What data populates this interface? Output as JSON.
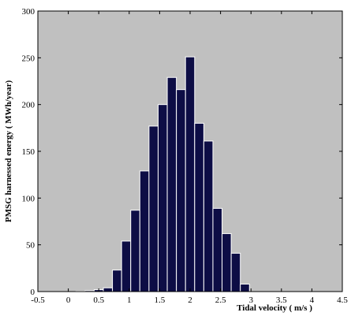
{
  "chart_data": {
    "type": "bar",
    "title": "",
    "xlabel": "Tidal velocity ( m/s )",
    "ylabel": "PMSG harnessed energy ( MWh/year)",
    "xlim": [
      -0.5,
      4.5
    ],
    "ylim": [
      0,
      300
    ],
    "xticks": [
      "-0.5",
      "0",
      "0.5",
      "1",
      "1.5",
      "2",
      "2.5",
      "3",
      "3.5",
      "4",
      "4.5"
    ],
    "yticks": [
      "0",
      "50",
      "100",
      "150",
      "200",
      "250",
      "300"
    ],
    "x": [
      0.05,
      0.2,
      0.35,
      0.5,
      0.65,
      0.8,
      0.95,
      1.1,
      1.25,
      1.4,
      1.55,
      1.7,
      1.85,
      2.0,
      2.15,
      2.3,
      2.45,
      2.6,
      2.75,
      2.9,
      3.05,
      3.2,
      3.35,
      3.5,
      3.65
    ],
    "values": [
      0,
      0.5,
      1,
      2,
      4,
      23,
      54,
      87,
      129,
      177,
      200,
      229,
      216,
      251,
      180,
      161,
      89,
      62,
      41,
      8,
      0,
      0,
      0,
      0,
      0
    ],
    "grid": false,
    "colors": {
      "bar": "#0d0d45",
      "bar_edge": "#ffffff",
      "plot_background": "#c0c0c0"
    }
  }
}
